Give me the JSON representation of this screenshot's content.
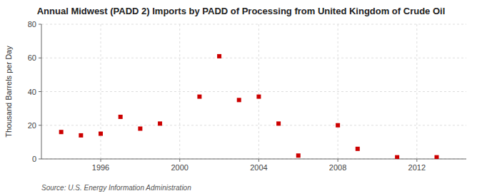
{
  "chart_data": {
    "type": "scatter",
    "title": "Annual Midwest (PADD 2) Imports by PADD of Processing from United Kingdom of Crude Oil",
    "y_label": "Thousand Barrels per Day",
    "annotations": [
      "Source: U.S. Energy Information Administration"
    ],
    "x": [
      1994,
      1995,
      1996,
      1997,
      1998,
      1999,
      2001,
      2002,
      2003,
      2004,
      2005,
      2006,
      2008,
      2009,
      2011,
      2013
    ],
    "values": [
      16,
      14,
      15,
      25,
      18,
      21,
      37,
      61,
      35,
      37,
      21,
      2,
      20,
      6,
      1,
      1
    ],
    "xlim": [
      1993,
      2014.5
    ],
    "ylim": [
      0,
      80
    ],
    "xticks": [
      1996,
      2000,
      2004,
      2008,
      2012
    ],
    "yticks": [
      0,
      20,
      40,
      60,
      80
    ],
    "color": "#cc0000",
    "marker": "square",
    "grid": true
  }
}
